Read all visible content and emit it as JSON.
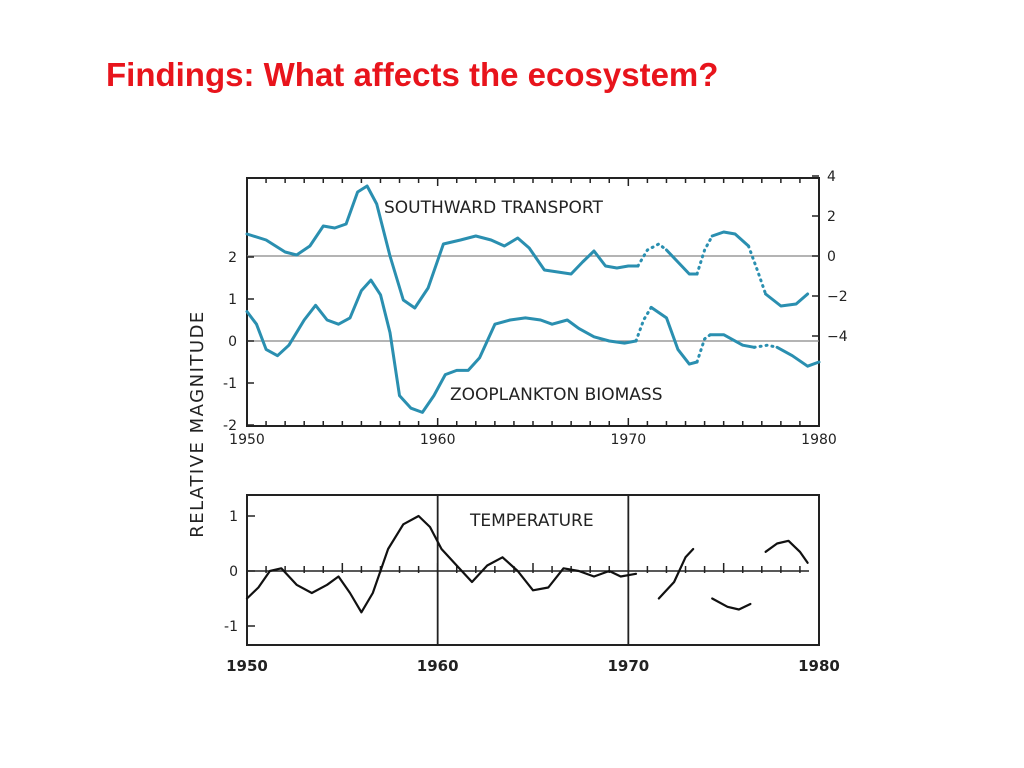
{
  "slide": {
    "title": "Findings: What affects the ecosystem?"
  },
  "colors": {
    "title": "#e8141c",
    "series_blue": "#2a8fb0",
    "series_black": "#111111",
    "reference_line": "#888888"
  },
  "chart_data": [
    {
      "type": "line",
      "title": "",
      "ylabel": "RELATIVE MAGNITUDE",
      "xlim": [
        1950,
        1980
      ],
      "x_ticks": [
        1950,
        1960,
        1970,
        1980
      ],
      "left_axis": {
        "ylim": [
          -2.1,
          4.0
        ],
        "ticks": [
          "2",
          "1",
          "0",
          "-1",
          "-2"
        ]
      },
      "right_axis": {
        "ticks": [
          "4",
          "2",
          "0",
          "−2",
          "−4"
        ]
      },
      "grid": false,
      "series": [
        {
          "name": "SOUTHWARD TRANSPORT",
          "axis": "right",
          "segments": [
            {
              "style": "solid",
              "points": [
                [
                  1950,
                  1.1
                ],
                [
                  1951,
                  0.8
                ],
                [
                  1952,
                  0.2
                ],
                [
                  1952.6,
                  0.05
                ],
                [
                  1953.3,
                  0.5
                ],
                [
                  1954,
                  1.5
                ],
                [
                  1954.6,
                  1.4
                ],
                [
                  1955.2,
                  1.6
                ],
                [
                  1955.8,
                  3.2
                ],
                [
                  1956.3,
                  3.5
                ],
                [
                  1956.8,
                  2.6
                ],
                [
                  1957.5,
                  0.0
                ],
                [
                  1958.2,
                  -2.2
                ],
                [
                  1958.8,
                  -2.6
                ],
                [
                  1959.5,
                  -1.6
                ],
                [
                  1960.3,
                  0.6
                ],
                [
                  1961.2,
                  0.8
                ],
                [
                  1962,
                  1.0
                ],
                [
                  1962.8,
                  0.8
                ],
                [
                  1963.5,
                  0.5
                ],
                [
                  1964.2,
                  0.9
                ],
                [
                  1964.8,
                  0.4
                ],
                [
                  1965.6,
                  -0.7
                ],
                [
                  1966.3,
                  -0.8
                ],
                [
                  1967.0,
                  -0.9
                ],
                [
                  1967.6,
                  -0.3
                ],
                [
                  1968.2,
                  0.25
                ],
                [
                  1968.8,
                  -0.5
                ],
                [
                  1969.4,
                  -0.6
                ],
                [
                  1970,
                  -0.5
                ],
                [
                  1970.5,
                  -0.5
                ]
              ]
            },
            {
              "style": "dotted",
              "points": [
                [
                  1970.5,
                  -0.5
                ],
                [
                  1971,
                  0.3
                ],
                [
                  1971.6,
                  0.6
                ],
                [
                  1972,
                  0.3
                ]
              ]
            },
            {
              "style": "solid",
              "points": [
                [
                  1972,
                  0.3
                ],
                [
                  1972.6,
                  -0.3
                ],
                [
                  1973.2,
                  -0.9
                ],
                [
                  1973.6,
                  -0.9
                ]
              ]
            },
            {
              "style": "dotted",
              "points": [
                [
                  1973.6,
                  -0.9
                ],
                [
                  1974,
                  0.3
                ],
                [
                  1974.4,
                  1.0
                ]
              ]
            },
            {
              "style": "solid",
              "points": [
                [
                  1974.4,
                  1.0
                ],
                [
                  1975,
                  1.2
                ],
                [
                  1975.6,
                  1.1
                ],
                [
                  1976.3,
                  0.5
                ]
              ]
            },
            {
              "style": "dotted",
              "points": [
                [
                  1976.3,
                  0.5
                ],
                [
                  1976.8,
                  -0.8
                ],
                [
                  1977.2,
                  -1.9
                ]
              ]
            },
            {
              "style": "solid",
              "points": [
                [
                  1977.2,
                  -1.9
                ],
                [
                  1978,
                  -2.5
                ],
                [
                  1978.8,
                  -2.4
                ],
                [
                  1979.4,
                  -1.9
                ]
              ]
            }
          ]
        },
        {
          "name": "ZOOPLANKTON BIOMASS",
          "axis": "left",
          "segments": [
            {
              "style": "solid",
              "points": [
                [
                  1950,
                  0.7
                ],
                [
                  1950.5,
                  0.4
                ],
                [
                  1951,
                  -0.2
                ],
                [
                  1951.6,
                  -0.35
                ],
                [
                  1952.2,
                  -0.1
                ],
                [
                  1953,
                  0.5
                ],
                [
                  1953.6,
                  0.85
                ],
                [
                  1954.2,
                  0.5
                ],
                [
                  1954.8,
                  0.4
                ],
                [
                  1955.4,
                  0.55
                ],
                [
                  1956.0,
                  1.2
                ],
                [
                  1956.5,
                  1.45
                ],
                [
                  1957.0,
                  1.1
                ],
                [
                  1957.5,
                  0.2
                ],
                [
                  1958.0,
                  -1.3
                ],
                [
                  1958.6,
                  -1.6
                ],
                [
                  1959.2,
                  -1.7
                ],
                [
                  1959.8,
                  -1.3
                ],
                [
                  1960.4,
                  -0.8
                ],
                [
                  1961.0,
                  -0.7
                ],
                [
                  1961.6,
                  -0.7
                ],
                [
                  1962.2,
                  -0.4
                ],
                [
                  1963.0,
                  0.4
                ],
                [
                  1963.8,
                  0.5
                ],
                [
                  1964.6,
                  0.55
                ],
                [
                  1965.4,
                  0.5
                ],
                [
                  1966.0,
                  0.4
                ],
                [
                  1966.8,
                  0.5
                ],
                [
                  1967.4,
                  0.3
                ],
                [
                  1968.2,
                  0.1
                ],
                [
                  1969.0,
                  0.0
                ],
                [
                  1969.8,
                  -0.05
                ],
                [
                  1970.4,
                  0.0
                ]
              ]
            },
            {
              "style": "dotted",
              "points": [
                [
                  1970.4,
                  0.0
                ],
                [
                  1970.8,
                  0.5
                ],
                [
                  1971.2,
                  0.8
                ]
              ]
            },
            {
              "style": "solid",
              "points": [
                [
                  1971.2,
                  0.8
                ],
                [
                  1972,
                  0.55
                ],
                [
                  1972.6,
                  -0.2
                ],
                [
                  1973.2,
                  -0.55
                ],
                [
                  1973.6,
                  -0.5
                ]
              ]
            },
            {
              "style": "dotted",
              "points": [
                [
                  1973.6,
                  -0.5
                ],
                [
                  1974.0,
                  0.05
                ],
                [
                  1974.3,
                  0.15
                ]
              ]
            },
            {
              "style": "solid",
              "points": [
                [
                  1974.3,
                  0.15
                ],
                [
                  1975.0,
                  0.15
                ],
                [
                  1976.0,
                  -0.1
                ],
                [
                  1976.6,
                  -0.15
                ]
              ]
            },
            {
              "style": "dotted",
              "points": [
                [
                  1976.6,
                  -0.15
                ],
                [
                  1977.3,
                  -0.1
                ],
                [
                  1977.8,
                  -0.15
                ]
              ]
            },
            {
              "style": "solid",
              "points": [
                [
                  1977.8,
                  -0.15
                ],
                [
                  1978.6,
                  -0.35
                ],
                [
                  1979.4,
                  -0.6
                ],
                [
                  1980,
                  -0.5
                ]
              ]
            }
          ]
        }
      ]
    },
    {
      "type": "line",
      "title": "TEMPERATURE",
      "xlim": [
        1950,
        1980
      ],
      "x_ticks": [
        1950,
        1960,
        1970,
        1980
      ],
      "ylim": [
        -1.35,
        1.35
      ],
      "y_ticks": [
        "1",
        "0",
        "-1"
      ],
      "grid": false,
      "series": [
        {
          "name": "TEMPERATURE",
          "segments": [
            {
              "style": "solid",
              "points": [
                [
                  1950,
                  -0.5
                ],
                [
                  1950.6,
                  -0.3
                ],
                [
                  1951.2,
                  0.0
                ],
                [
                  1951.8,
                  0.05
                ],
                [
                  1952.6,
                  -0.25
                ],
                [
                  1953.4,
                  -0.4
                ],
                [
                  1954.2,
                  -0.25
                ],
                [
                  1954.8,
                  -0.1
                ],
                [
                  1955.4,
                  -0.4
                ],
                [
                  1956,
                  -0.75
                ],
                [
                  1956.6,
                  -0.4
                ],
                [
                  1957.4,
                  0.4
                ],
                [
                  1958.2,
                  0.85
                ],
                [
                  1959,
                  1.0
                ],
                [
                  1959.6,
                  0.8
                ],
                [
                  1960.2,
                  0.4
                ],
                [
                  1961,
                  0.1
                ],
                [
                  1961.8,
                  -0.2
                ],
                [
                  1962.6,
                  0.1
                ],
                [
                  1963.4,
                  0.25
                ],
                [
                  1964.2,
                  0.0
                ],
                [
                  1965.0,
                  -0.35
                ],
                [
                  1965.8,
                  -0.3
                ],
                [
                  1966.6,
                  0.05
                ],
                [
                  1967.4,
                  0.0
                ],
                [
                  1968.2,
                  -0.1
                ],
                [
                  1969.0,
                  0.0
                ],
                [
                  1969.6,
                  -0.1
                ],
                [
                  1970.4,
                  -0.05
                ]
              ]
            },
            {
              "style": "solid",
              "points": [
                [
                  1971.6,
                  -0.5
                ],
                [
                  1972.4,
                  -0.2
                ],
                [
                  1973.0,
                  0.25
                ],
                [
                  1973.4,
                  0.4
                ]
              ]
            },
            {
              "style": "solid",
              "points": [
                [
                  1974.4,
                  -0.5
                ],
                [
                  1975.2,
                  -0.65
                ],
                [
                  1975.8,
                  -0.7
                ],
                [
                  1976.4,
                  -0.6
                ]
              ]
            },
            {
              "style": "solid",
              "points": [
                [
                  1977.2,
                  0.35
                ],
                [
                  1977.8,
                  0.5
                ],
                [
                  1978.4,
                  0.55
                ],
                [
                  1979.0,
                  0.35
                ],
                [
                  1979.4,
                  0.15
                ]
              ]
            }
          ]
        }
      ]
    }
  ]
}
